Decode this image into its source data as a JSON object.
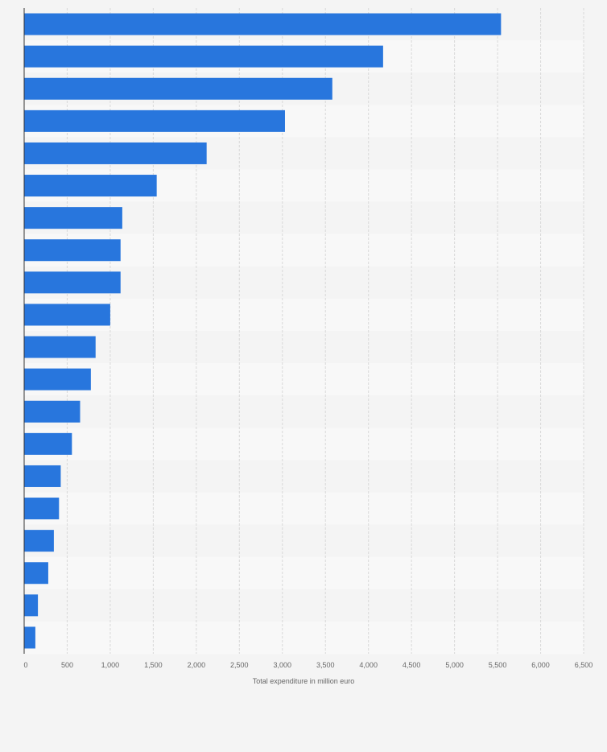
{
  "chart_data": {
    "type": "bar",
    "orientation": "horizontal",
    "xlabel": "Total expenditure in million euro",
    "ylabel": "",
    "title": "",
    "xlim": [
      0,
      6500
    ],
    "x_ticks": [
      0,
      500,
      1000,
      1500,
      2000,
      2500,
      3000,
      3500,
      4000,
      4500,
      5000,
      5500,
      6000,
      6500
    ],
    "x_tick_labels": [
      "0",
      "500",
      "1,000",
      "1,500",
      "2,000",
      "2,500",
      "3,000",
      "3,500",
      "4,000",
      "4,500",
      "5,000",
      "5,500",
      "6,000",
      "6,500"
    ],
    "values": [
      5540,
      4170,
      3580,
      3030,
      2120,
      1540,
      1140,
      1120,
      1120,
      1000,
      830,
      775,
      650,
      555,
      425,
      405,
      345,
      280,
      160,
      130
    ],
    "grid": true,
    "bar_color": "#2876dd",
    "alt_row_colors": [
      "#f4f4f4",
      "#f8f8f8"
    ]
  }
}
